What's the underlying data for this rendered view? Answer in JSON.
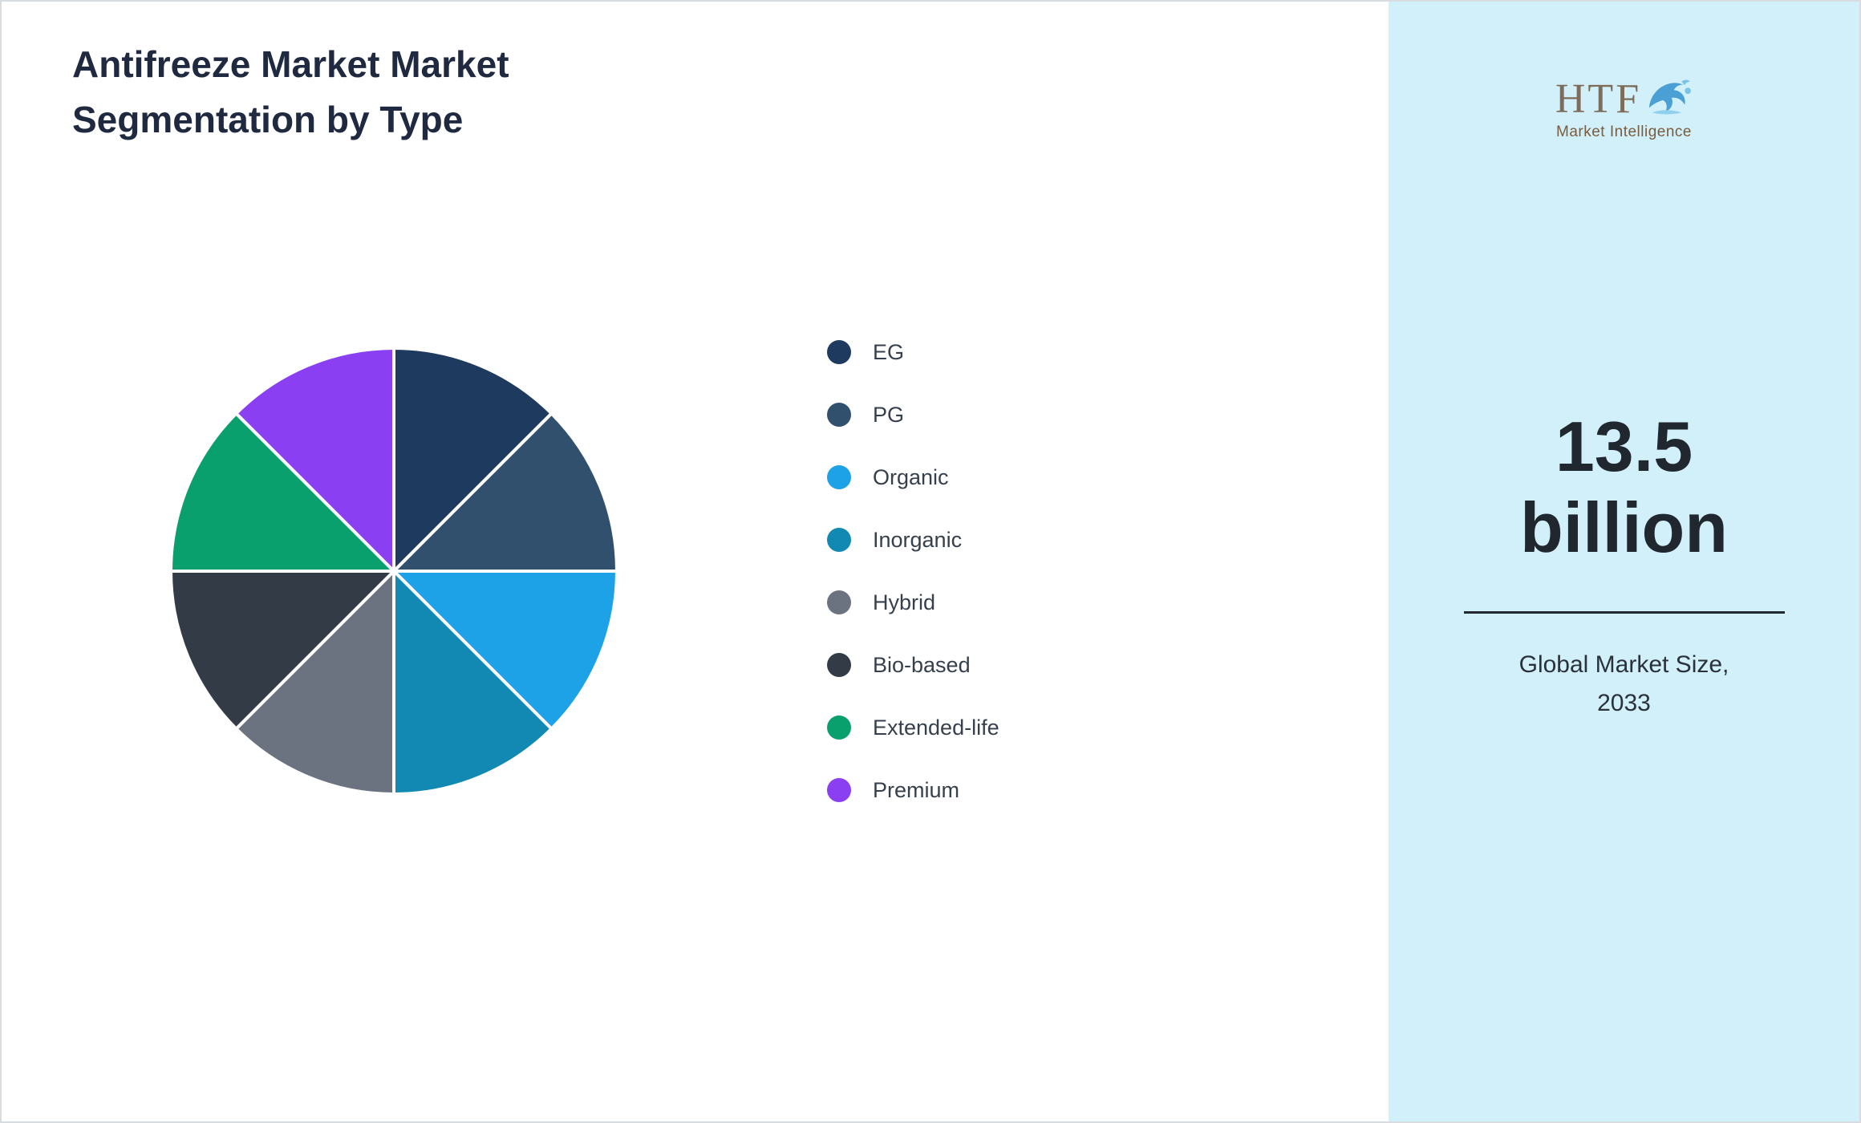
{
  "header": {
    "title": "Antifreeze Market Market Segmentation by Type"
  },
  "chart_data": {
    "type": "pie",
    "title": "Antifreeze Market Market Segmentation by Type",
    "labels": [
      "EG",
      "PG",
      "Organic",
      "Inorganic",
      "Hybrid",
      "Bio-based",
      "Extended-life",
      "Premium"
    ],
    "values": [
      12.5,
      12.5,
      12.5,
      12.5,
      12.5,
      12.5,
      12.5,
      12.5
    ],
    "colors": [
      "#1e3a5f",
      "#31506e",
      "#1da2e8",
      "#1289b2",
      "#6b7380",
      "#333b47",
      "#0aa06d",
      "#8b3ff2"
    ],
    "units": "percent",
    "start_angle_deg": 0,
    "direction": "clockwise",
    "legend_position": "right",
    "slice_border_color": "#ffffff"
  },
  "sidebar": {
    "logo": {
      "text": "HTF",
      "subtext": "Market Intelligence"
    },
    "market_size_value": "13.5 billion",
    "market_size_label": "Global Market Size, 2033",
    "background_color": "#d2f0f9"
  }
}
